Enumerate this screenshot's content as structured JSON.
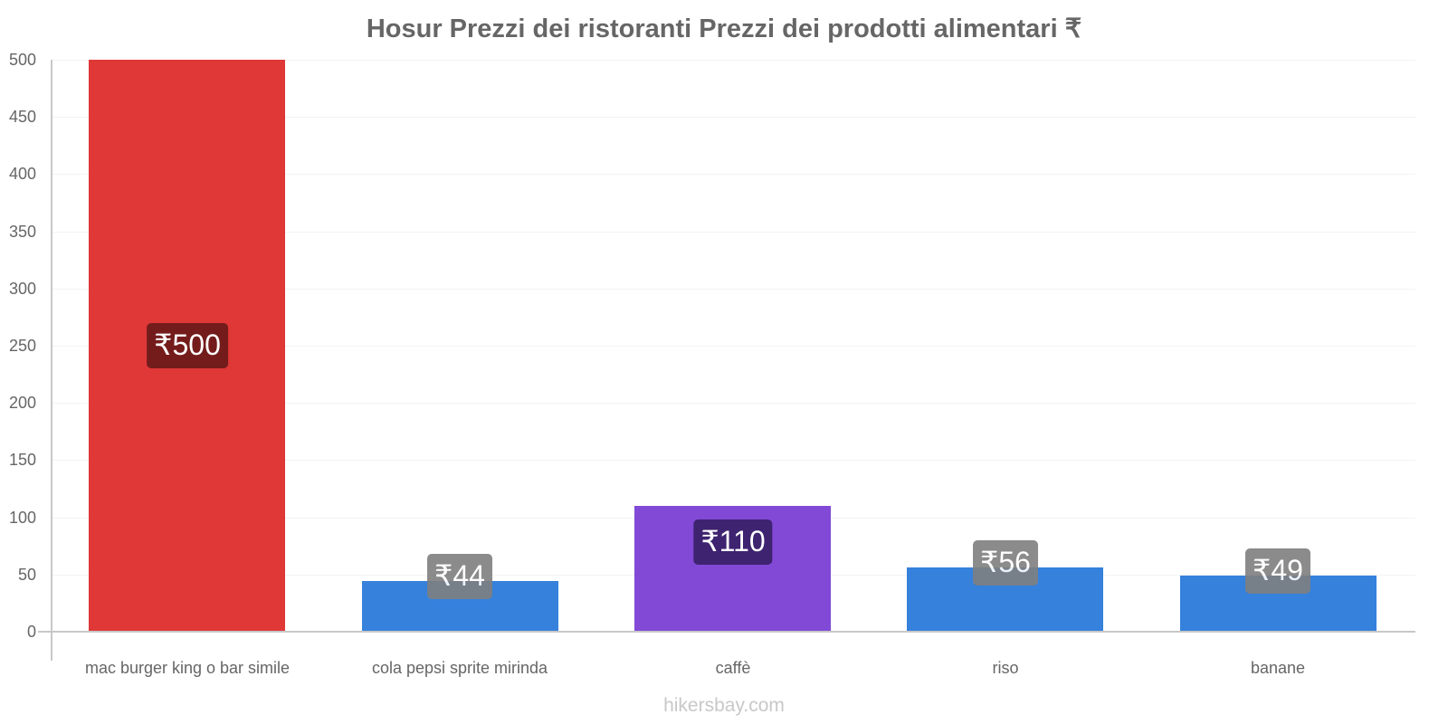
{
  "chart_data": {
    "type": "bar",
    "title": "Hosur Prezzi dei ristoranti Prezzi dei prodotti alimentari ₹",
    "xlabel": "",
    "ylabel": "",
    "ylim": [
      0,
      500
    ],
    "yticks": [
      "0",
      "50",
      "100",
      "150",
      "200",
      "250",
      "300",
      "350",
      "400",
      "450",
      "500"
    ],
    "grid": true,
    "legend": "none",
    "categories": [
      "mac burger king o bar simile",
      "cola pepsi sprite mirinda",
      "caffè",
      "riso",
      "banane"
    ],
    "values": [
      500,
      44,
      110,
      56,
      49
    ],
    "value_labels": [
      "₹500",
      "₹44",
      "₹110",
      "₹56",
      "₹49"
    ],
    "bar_colors": [
      "#e03737",
      "#3581dc",
      "#8249d6",
      "#3581dc",
      "#3581dc"
    ],
    "label_bg_colors": [
      "#741c1c",
      "#7f7f7f",
      "#3e2370",
      "#7f7f7f",
      "#7f7f7f"
    ]
  },
  "footer": "hikersbay.com"
}
